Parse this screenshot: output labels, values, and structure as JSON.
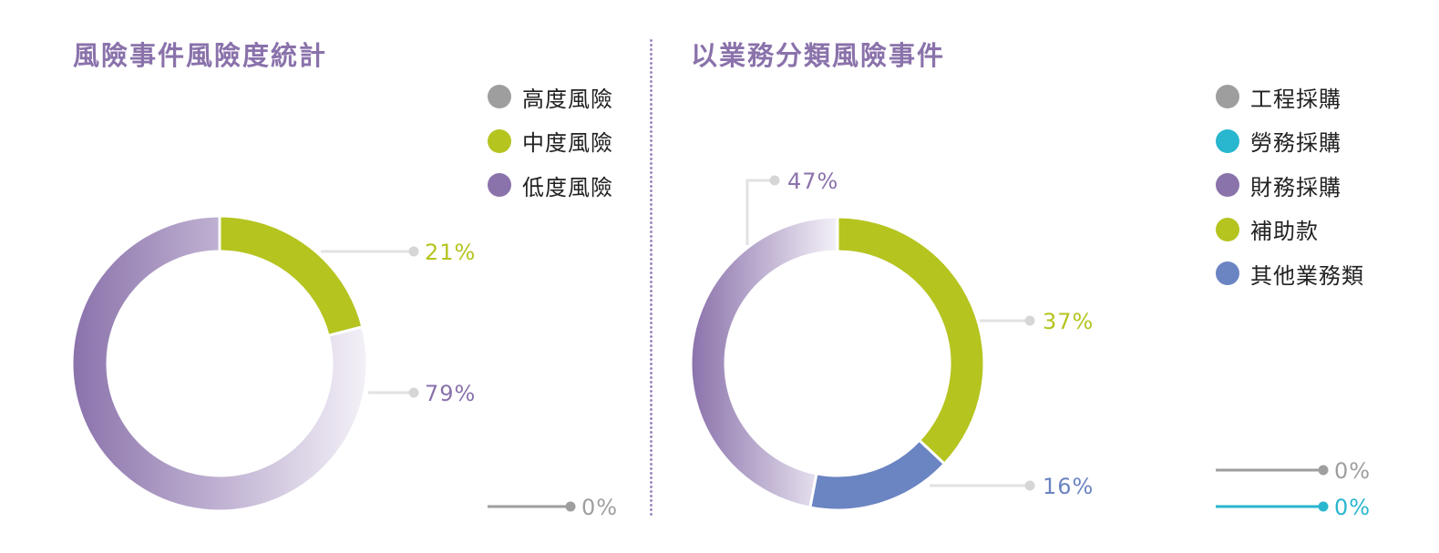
{
  "chart_data": [
    {
      "type": "pie",
      "title": "風險事件風險度統計",
      "categories": [
        "高度風險",
        "中度風險",
        "低度風險"
      ],
      "values": [
        0,
        21,
        79
      ],
      "value_labels": [
        "0%",
        "21%",
        "79%"
      ],
      "colors": [
        "#9e9e9e",
        "#b5c41f",
        "#8a72ab"
      ],
      "donut": true,
      "legend_position": "top-right"
    },
    {
      "type": "pie",
      "title": "以業務分類風險事件",
      "categories": [
        "工程採購",
        "勞務採購",
        "財務採購",
        "補助款",
        "其他業務類"
      ],
      "values": [
        0,
        0,
        47,
        37,
        16
      ],
      "value_labels": [
        "0%",
        "0%",
        "47%",
        "37%",
        "16%"
      ],
      "colors": [
        "#9e9e9e",
        "#29b6cf",
        "#8a72ab",
        "#b5c41f",
        "#6b84c2"
      ],
      "donut": true,
      "legend_position": "top-right"
    }
  ]
}
